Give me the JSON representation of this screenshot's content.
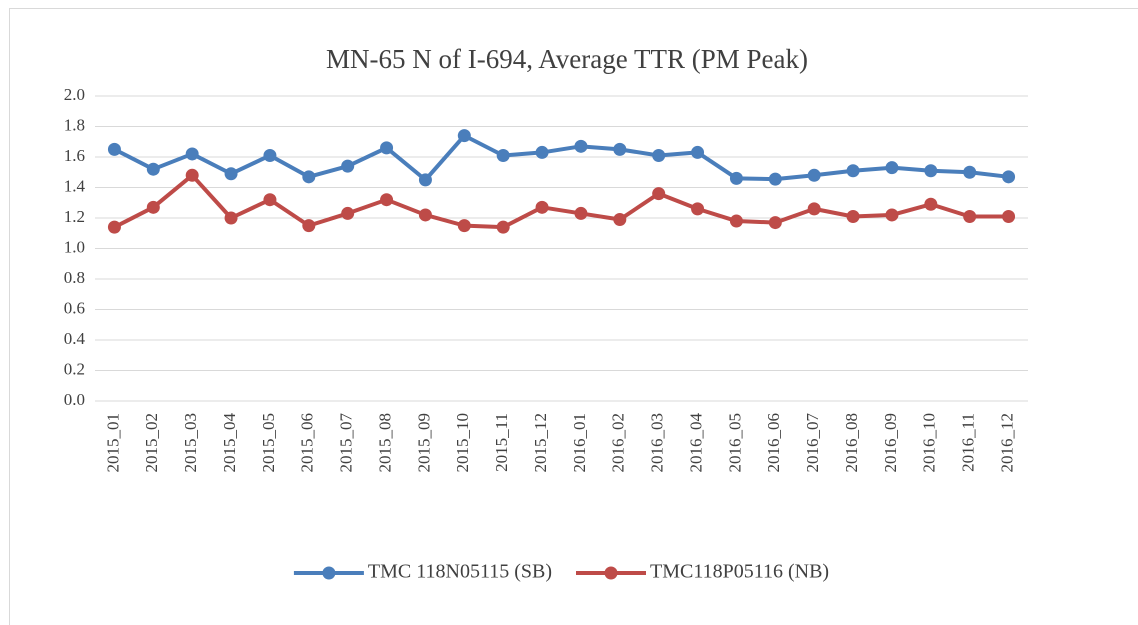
{
  "chart_data": {
    "type": "line",
    "title": "MN-65 N of I-694, Average TTR (PM Peak)",
    "categories": [
      "2015_01",
      "2015_02",
      "2015_03",
      "2015_04",
      "2015_05",
      "2015_06",
      "2015_07",
      "2015_08",
      "2015_09",
      "2015_10",
      "2015_11",
      "2015_12",
      "2016_01",
      "2016_02",
      "2016_03",
      "2016_04",
      "2016_05",
      "2016_06",
      "2016_07",
      "2016_08",
      "2016_09",
      "2016_10",
      "2016_11",
      "2016_12"
    ],
    "series": [
      {
        "name": "TMC 118N05115 (SB)",
        "color": "#4a7ebb",
        "values": [
          1.65,
          1.52,
          1.62,
          1.49,
          1.61,
          1.47,
          1.54,
          1.66,
          1.45,
          1.74,
          1.61,
          1.63,
          1.67,
          1.65,
          1.61,
          1.63,
          1.46,
          1.455,
          1.48,
          1.51,
          1.53,
          1.51,
          1.5,
          1.47
        ]
      },
      {
        "name": "TMC118P05116 (NB)",
        "color": "#be4b48",
        "values": [
          1.14,
          1.27,
          1.48,
          1.2,
          1.32,
          1.15,
          1.23,
          1.32,
          1.22,
          1.15,
          1.14,
          1.27,
          1.23,
          1.19,
          1.36,
          1.26,
          1.18,
          1.17,
          1.26,
          1.21,
          1.22,
          1.29,
          1.21,
          1.21
        ]
      }
    ],
    "ylim": [
      0,
      2
    ],
    "yticks": [
      {
        "value": 0,
        "label": "0.0"
      },
      0.2,
      0.4,
      0.6,
      0.8,
      {
        "value": 1,
        "label": "1.0"
      },
      1.2,
      1.4,
      1.6,
      1.8,
      {
        "value": 2,
        "label": "2.0"
      }
    ],
    "grid": true,
    "legend": "bottom"
  }
}
